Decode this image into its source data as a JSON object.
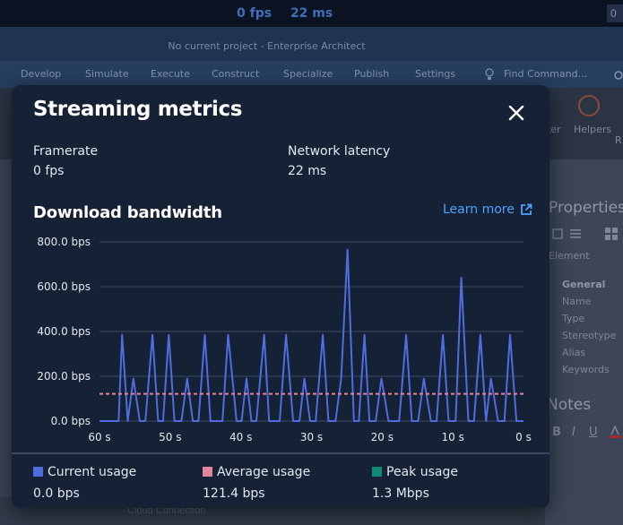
{
  "topbar": {
    "fps": "0 fps",
    "latency": "22 ms",
    "box": "0"
  },
  "app": {
    "title": "No current project - Enterprise Architect",
    "menu": [
      "Develop",
      "Simulate",
      "Execute",
      "Construct",
      "Specialize",
      "Publish",
      "Settings",
      "Find Command..."
    ],
    "ribbon": {
      "item1": "ter",
      "item2": "Helpers",
      "item3": "R"
    },
    "properties": {
      "title": "Properties",
      "tab": "Element",
      "group": "General",
      "fields": [
        "Name",
        "Type",
        "Stereotype",
        "Alias",
        "Keywords"
      ]
    },
    "notes": {
      "title": "Notes",
      "bold": "B",
      "italic": "I",
      "underline": "U"
    },
    "bottom": "Cloud Connection"
  },
  "modal": {
    "title": "Streaming metrics",
    "framerate_label": "Framerate",
    "framerate_value": "0 fps",
    "latency_label": "Network latency",
    "latency_value": "22 ms",
    "section_title": "Download bandwidth",
    "learn_more": "Learn more"
  },
  "colors": {
    "current": "#4f6ddf",
    "average": "#e5839a",
    "peak": "#0f8a73",
    "accent": "#4da3ff"
  },
  "legend": [
    {
      "label": "Current usage",
      "value": "0.0 bps"
    },
    {
      "label": "Average usage",
      "value": "121.4 bps"
    },
    {
      "label": "Peak usage",
      "value": "1.3 Mbps"
    }
  ],
  "chart_data": {
    "type": "line",
    "title": "Download bandwidth",
    "xlim": [
      60,
      0
    ],
    "ylim": [
      0,
      800
    ],
    "yticks": [
      0,
      200,
      400,
      600,
      800
    ],
    "ytick_labels": [
      "0.0 bps",
      "200.0 bps",
      "400.0 bps",
      "600.0 bps",
      "800.0 bps"
    ],
    "xticks": [
      60,
      50,
      40,
      30,
      20,
      10,
      0
    ],
    "xtick_labels": [
      "60 s",
      "50 s",
      "40 s",
      "30 s",
      "20 s",
      "10 s",
      "0 s"
    ],
    "grid": true,
    "series": [
      {
        "name": "Current usage",
        "x": [
          60,
          57.3,
          56.8,
          56.0,
          55.2,
          54.3,
          53.5,
          52.5,
          51.7,
          51.0,
          50.2,
          49.4,
          48.4,
          47.6,
          46.8,
          46.0,
          45.1,
          44.3,
          43.4,
          42.6,
          41.8,
          40.6,
          39.9,
          39.2,
          38.5,
          37.8,
          36.7,
          36.0,
          35.2,
          34.5,
          33.6,
          32.6,
          31.7,
          31.0,
          30.2,
          29.4,
          28.4,
          27.6,
          26.6,
          25.8,
          24.9,
          24.0,
          23.3,
          22.5,
          21.8,
          20.9,
          20.1,
          19.1,
          18.3,
          17.6,
          16.6,
          15.8,
          14.9,
          14.1,
          13.1,
          12.3,
          11.4,
          10.6,
          9.6,
          8.8,
          7.8,
          7.0,
          6.1,
          5.3,
          4.6,
          3.6,
          2.7,
          1.9,
          1.0,
          0
        ],
        "values": [
          0,
          0,
          385,
          0,
          190,
          0,
          0,
          385,
          0,
          0,
          385,
          0,
          0,
          190,
          0,
          0,
          385,
          0,
          0,
          0,
          385,
          0,
          0,
          190,
          0,
          0,
          385,
          0,
          0,
          0,
          385,
          0,
          0,
          190,
          0,
          0,
          385,
          0,
          0,
          190,
          765,
          0,
          0,
          385,
          0,
          0,
          190,
          0,
          0,
          0,
          385,
          0,
          0,
          190,
          0,
          0,
          385,
          0,
          0,
          640,
          0,
          0,
          385,
          0,
          190,
          0,
          0,
          385,
          0,
          0
        ]
      },
      {
        "name": "Average usage",
        "x": [
          60,
          0
        ],
        "values": [
          121.4,
          121.4
        ]
      }
    ]
  }
}
